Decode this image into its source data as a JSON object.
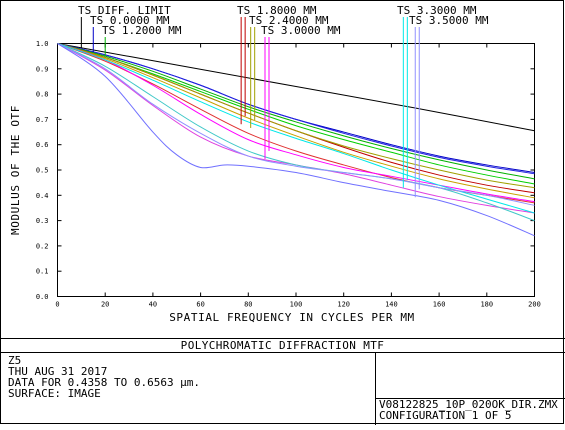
{
  "chart_data": {
    "type": "line",
    "title": "POLYCHROMATIC DIFFRACTION MTF",
    "xlabel": "SPATIAL FREQUENCY IN CYCLES PER MM",
    "ylabel": "MODULUS OF THE OTF",
    "xlim": [
      0,
      200
    ],
    "ylim": [
      0,
      1.0
    ],
    "x_ticks": [
      "0",
      "20",
      "40",
      "60",
      "80",
      "100",
      "120",
      "140",
      "160",
      "180",
      "200"
    ],
    "y_ticks": [
      "0.0",
      "0.1",
      "0.2",
      "0.3",
      "0.4",
      "0.5",
      "0.6",
      "0.7",
      "0.8",
      "0.9",
      "1.0"
    ],
    "grid": false,
    "field_labels": [
      {
        "text": "TS DIFF. LIMIT",
        "color": "#000000",
        "tick_x": 10
      },
      {
        "text": "TS 0.0000 MM",
        "color": "#0000c8",
        "tick_x": 15
      },
      {
        "text": "TS 1.2000 MM",
        "color": "#00b000",
        "tick_x": 20
      },
      {
        "text": "TS 1.8000 MM",
        "color": "#c00000",
        "tick_x": 77
      },
      {
        "text": "TS 2.4000 MM",
        "color": "#a0a000",
        "tick_x": 81
      },
      {
        "text": "TS 3.0000 MM",
        "color": "#ff00ff",
        "tick_x": 87
      },
      {
        "text": "TS 3.3000 MM",
        "color": "#00e8e8",
        "tick_x": 145
      },
      {
        "text": "TS 3.5000 MM",
        "color": "#9090ff",
        "tick_x": 150
      }
    ],
    "series": [
      {
        "name": "TS DIFF. LIMIT",
        "color": "#000000",
        "x": [
          0,
          50,
          100,
          150,
          200
        ],
        "y": [
          1.0,
          0.915,
          0.83,
          0.745,
          0.655
        ]
      },
      {
        "name": "TS 0.0000 MM T",
        "color": "#0000c8",
        "x": [
          0,
          20,
          40,
          60,
          80,
          100,
          120,
          140,
          160,
          180,
          200
        ],
        "y": [
          1.0,
          0.955,
          0.9,
          0.835,
          0.76,
          0.7,
          0.65,
          0.6,
          0.555,
          0.52,
          0.49
        ]
      },
      {
        "name": "TS 0.0000 MM S",
        "color": "#2020e0",
        "x": [
          0,
          20,
          40,
          60,
          80,
          100,
          120,
          140,
          160,
          180,
          200
        ],
        "y": [
          1.0,
          0.955,
          0.9,
          0.835,
          0.76,
          0.7,
          0.645,
          0.595,
          0.55,
          0.515,
          0.485
        ]
      },
      {
        "name": "TS 1.2000 MM T",
        "color": "#00b000",
        "x": [
          0,
          20,
          40,
          60,
          80,
          100,
          120,
          140,
          160,
          180,
          200
        ],
        "y": [
          1.0,
          0.95,
          0.89,
          0.82,
          0.75,
          0.69,
          0.635,
          0.585,
          0.54,
          0.5,
          0.465
        ]
      },
      {
        "name": "TS 1.2000 MM S",
        "color": "#00d000",
        "x": [
          0,
          20,
          40,
          60,
          80,
          100,
          120,
          140,
          160,
          180,
          200
        ],
        "y": [
          1.0,
          0.945,
          0.88,
          0.81,
          0.74,
          0.675,
          0.62,
          0.57,
          0.52,
          0.48,
          0.445
        ]
      },
      {
        "name": "TS 1.8000 MM T",
        "color": "#c00000",
        "x": [
          0,
          20,
          40,
          60,
          80,
          100,
          120,
          140,
          160,
          180,
          200
        ],
        "y": [
          1.0,
          0.945,
          0.875,
          0.8,
          0.725,
          0.655,
          0.59,
          0.53,
          0.48,
          0.44,
          0.41
        ]
      },
      {
        "name": "TS 1.8000 MM S",
        "color": "#e03030",
        "x": [
          0,
          20,
          40,
          60,
          80,
          100,
          120,
          140,
          160,
          180,
          200
        ],
        "y": [
          1.0,
          0.93,
          0.84,
          0.74,
          0.645,
          0.575,
          0.52,
          0.47,
          0.43,
          0.4,
          0.37
        ]
      },
      {
        "name": "TS 2.4000 MM T",
        "color": "#a0a000",
        "x": [
          0,
          20,
          40,
          60,
          80,
          100,
          120,
          140,
          160,
          180,
          200
        ],
        "y": [
          1.0,
          0.945,
          0.875,
          0.8,
          0.725,
          0.655,
          0.595,
          0.545,
          0.5,
          0.46,
          0.43
        ]
      },
      {
        "name": "TS 2.4000 MM S",
        "color": "#c8a000",
        "x": [
          0,
          20,
          40,
          60,
          80,
          100,
          120,
          140,
          160,
          180,
          200
        ],
        "y": [
          1.0,
          0.94,
          0.865,
          0.785,
          0.705,
          0.635,
          0.57,
          0.515,
          0.465,
          0.425,
          0.39
        ]
      },
      {
        "name": "TS 3.0000 MM T",
        "color": "#ff00ff",
        "x": [
          0,
          20,
          40,
          60,
          80,
          100,
          120,
          140,
          160,
          180,
          200
        ],
        "y": [
          1.0,
          0.935,
          0.835,
          0.72,
          0.62,
          0.56,
          0.51,
          0.475,
          0.44,
          0.405,
          0.375
        ]
      },
      {
        "name": "TS 3.0000 MM S",
        "color": "#e040e0",
        "x": [
          0,
          20,
          40,
          60,
          80,
          100,
          120,
          140,
          160,
          180,
          200
        ],
        "y": [
          1.0,
          0.895,
          0.755,
          0.63,
          0.555,
          0.52,
          0.485,
          0.44,
          0.395,
          0.36,
          0.33
        ]
      },
      {
        "name": "TS 3.3000 MM T",
        "color": "#00e8e8",
        "x": [
          0,
          20,
          40,
          60,
          80,
          100,
          120,
          140,
          160,
          180,
          200
        ],
        "y": [
          1.0,
          0.935,
          0.855,
          0.77,
          0.69,
          0.625,
          0.565,
          0.5,
          0.44,
          0.385,
          0.33
        ]
      },
      {
        "name": "TS 3.3000 MM S",
        "color": "#40c8c8",
        "x": [
          0,
          20,
          40,
          60,
          80,
          100,
          120,
          140,
          160,
          180,
          200
        ],
        "y": [
          1.0,
          0.91,
          0.79,
          0.67,
          0.575,
          0.52,
          0.49,
          0.465,
          0.43,
          0.37,
          0.3
        ]
      },
      {
        "name": "TS 3.5000 MM T",
        "color": "#9090ff",
        "x": [
          0,
          20,
          40,
          60,
          80,
          100,
          120,
          140,
          160,
          180,
          200
        ],
        "y": [
          1.0,
          0.9,
          0.76,
          0.645,
          0.555,
          0.515,
          0.49,
          0.465,
          0.43,
          0.4,
          0.36
        ]
      },
      {
        "name": "TS 3.5000 MM S",
        "color": "#7070ff",
        "x": [
          0,
          20,
          40,
          50,
          60,
          70,
          80,
          100,
          120,
          140,
          160,
          180,
          200
        ],
        "y": [
          1.0,
          0.87,
          0.65,
          0.56,
          0.51,
          0.52,
          0.515,
          0.49,
          0.45,
          0.415,
          0.38,
          0.32,
          0.24
        ]
      }
    ]
  },
  "footer": {
    "title": "POLYCHROMATIC DIFFRACTION MTF",
    "line1": "Z5",
    "line2": "THU AUG 31 2017",
    "line3": "DATA FOR 0.4358 TO 0.6563 µm.",
    "line4": "SURFACE: IMAGE",
    "file": "V08122825_10P_020OK_DIR.ZMX",
    "config": "CONFIGURATION 1 OF 5"
  }
}
